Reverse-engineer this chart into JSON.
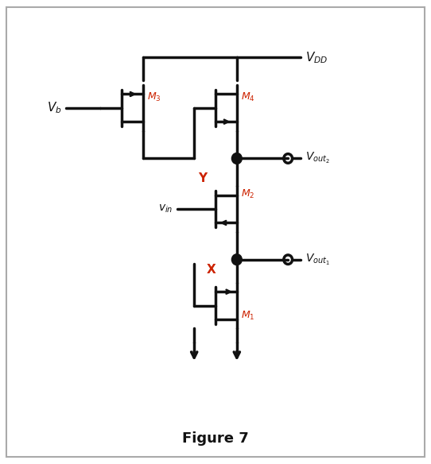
{
  "figsize": [
    5.42,
    5.84
  ],
  "dpi": 100,
  "bg_color": "#ffffff",
  "line_color": "#111111",
  "red_color": "#cc2200",
  "title": "Figure 7",
  "title_fontsize": 13
}
